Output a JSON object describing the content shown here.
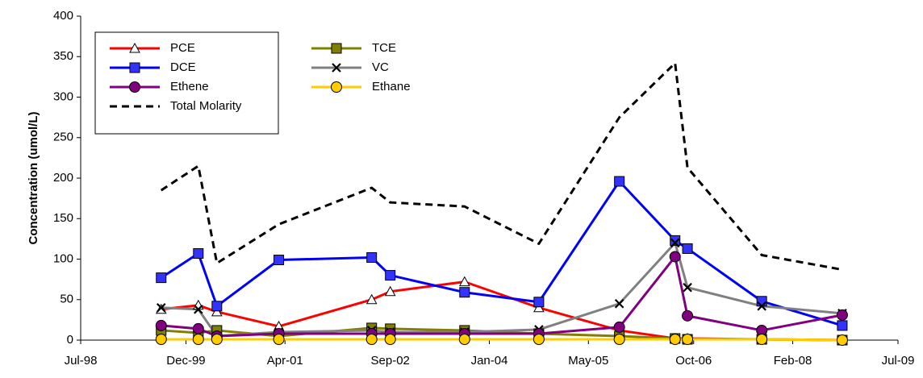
{
  "chart_data": {
    "type": "line",
    "y_label": "Concentration (umol/L)",
    "x": [
      "1999-08",
      "2000-02",
      "2000-05",
      "2001-03",
      "2002-06",
      "2002-09",
      "2003-09",
      "2004-09",
      "2005-10",
      "2006-07",
      "2006-09",
      "2007-09",
      "2008-10"
    ],
    "xlim": [
      "1998-07",
      "2009-07"
    ],
    "xticks": [
      {
        "value": "1998-07",
        "label": "Jul-98"
      },
      {
        "value": "1999-12",
        "label": "Dec-99"
      },
      {
        "value": "2001-04",
        "label": "Apr-01"
      },
      {
        "value": "2002-09",
        "label": "Sep-02"
      },
      {
        "value": "2004-01",
        "label": "Jan-04"
      },
      {
        "value": "2005-05",
        "label": "May-05"
      },
      {
        "value": "2006-10",
        "label": "Oct-06"
      },
      {
        "value": "2008-02",
        "label": "Feb-08"
      },
      {
        "value": "2009-07",
        "label": "Jul-09"
      }
    ],
    "ylim": [
      0,
      400
    ],
    "yticks": [
      0,
      50,
      100,
      150,
      200,
      250,
      300,
      350,
      400
    ],
    "legend": "upper left",
    "series": [
      {
        "name": "PCE",
        "color": "#ff0000",
        "marker": "triangle",
        "marker_fill": "#ffffff",
        "values": [
          38,
          43,
          35,
          17,
          50,
          60,
          72,
          40,
          12,
          2,
          2,
          1,
          0
        ]
      },
      {
        "name": "TCE",
        "color": "#808000",
        "marker": "square",
        "marker_fill": "#808000",
        "values": [
          12,
          9,
          12,
          5,
          15,
          14,
          12,
          8,
          5,
          2,
          1,
          1,
          0
        ]
      },
      {
        "name": "DCE",
        "color": "#0000ff",
        "marker": "square",
        "marker_fill": "#3333ff",
        "values": [
          77,
          107,
          42,
          99,
          102,
          80,
          59,
          47,
          196,
          123,
          113,
          48,
          18
        ]
      },
      {
        "name": "VC",
        "color": "#808080",
        "marker": "x",
        "marker_fill": "#000000",
        "values": [
          40,
          38,
          5,
          10,
          12,
          10,
          10,
          13,
          45,
          120,
          65,
          42,
          33
        ]
      },
      {
        "name": "Ethene",
        "color": "#800080",
        "marker": "circle",
        "marker_fill": "#800080",
        "values": [
          18,
          14,
          5,
          8,
          8,
          8,
          8,
          8,
          16,
          103,
          30,
          12,
          31
        ]
      },
      {
        "name": "Ethane",
        "color": "#ffcc00",
        "marker": "circle",
        "marker_fill": "#ffcc00",
        "values": [
          1,
          1,
          1,
          1,
          1,
          1,
          1,
          1,
          1,
          1,
          1,
          1,
          0
        ]
      },
      {
        "name": "Total Molarity",
        "color": "#000000",
        "dash": true,
        "values": [
          185,
          215,
          95,
          143,
          188,
          170,
          165,
          119,
          275,
          342,
          213,
          105,
          87
        ]
      }
    ]
  }
}
